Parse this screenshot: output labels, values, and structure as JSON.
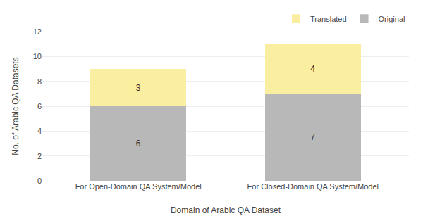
{
  "chart_data": {
    "type": "bar",
    "stacked": true,
    "categories": [
      "For Open-Domain QA System/Model",
      "For Closed-Domain QA System/Model"
    ],
    "series": [
      {
        "name": "Original",
        "color": "#b8b8b8",
        "values": [
          6,
          7
        ]
      },
      {
        "name": "Translated",
        "color": "#faeea0",
        "values": [
          3,
          4
        ]
      }
    ],
    "xlabel": "Domain of Arabic QA Dataset",
    "ylabel": "No. of Arabic QA Datasets",
    "ylim": [
      0,
      12
    ],
    "yticks": [
      0,
      2,
      4,
      6,
      8,
      10,
      12
    ],
    "grid": true,
    "legend": "upper right",
    "data_labels": true
  }
}
